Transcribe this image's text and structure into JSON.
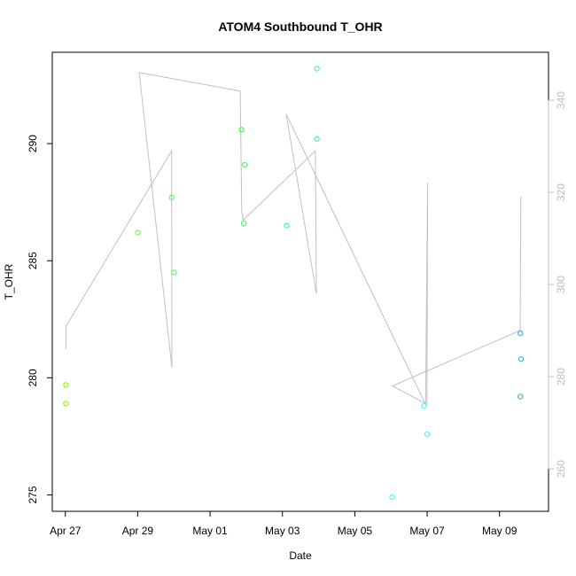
{
  "chart_data": {
    "type": "scatter",
    "title": "ATOM4 Southbound T_OHR",
    "xlabel": "Date",
    "ylabel": "T_OHR",
    "x_tick_labels": [
      "Apr 27",
      "Apr 29",
      "May 01",
      "May 03",
      "May 05",
      "May 07",
      "May 09"
    ],
    "x_ticks": [
      "2016-04-27",
      "2016-04-29",
      "2016-05-01",
      "2016-05-03",
      "2016-05-05",
      "2016-05-07",
      "2016-05-09"
    ],
    "xlim": [
      "2016-04-26T15:20",
      "2016-05-10T08:30"
    ],
    "ylim": [
      274.3,
      293.9
    ],
    "y_ticks": [
      275,
      280,
      285,
      290
    ],
    "y2lim": [
      250.8,
      350.4
    ],
    "y2_ticks": [
      260,
      280,
      300,
      320,
      340
    ],
    "grid": false,
    "points": [
      {
        "x": "2016-04-27T00:20",
        "y": 279.7,
        "color": "#7cfc00"
      },
      {
        "x": "2016-04-27T00:20",
        "y": 278.9,
        "color": "#7cfc00"
      },
      {
        "x": "2016-04-29T00:05",
        "y": 286.2,
        "color": "#5cff30"
      },
      {
        "x": "2016-04-29T22:30",
        "y": 287.7,
        "color": "#44ff44"
      },
      {
        "x": "2016-04-30T00:05",
        "y": 284.5,
        "color": "#44ff44"
      },
      {
        "x": "2016-05-01T20:50",
        "y": 290.6,
        "color": "#28ff50"
      },
      {
        "x": "2016-05-01T23:00",
        "y": 289.1,
        "color": "#28ff50"
      },
      {
        "x": "2016-05-01T22:20",
        "y": 286.6,
        "color": "#28ff50"
      },
      {
        "x": "2016-05-03T02:50",
        "y": 286.5,
        "color": "#20ff70"
      },
      {
        "x": "2016-05-03T22:50",
        "y": 293.2,
        "color": "#20ff90"
      },
      {
        "x": "2016-05-03T22:50",
        "y": 290.2,
        "color": "#20ff90"
      },
      {
        "x": "2016-05-06T00:40",
        "y": 274.9,
        "color": "#30ffe0"
      },
      {
        "x": "2016-05-06T21:55",
        "y": 278.8,
        "color": "#30ffff"
      },
      {
        "x": "2016-05-07T00:00",
        "y": 277.6,
        "color": "#30ffff"
      },
      {
        "x": "2016-05-09T13:50",
        "y": 281.9,
        "color": "#1ea8ff"
      },
      {
        "x": "2016-05-09T13:50",
        "y": 279.2,
        "color": "#1ea8ff"
      },
      {
        "x": "2016-05-09T14:20",
        "y": 280.8,
        "color": "#1ea8ff"
      }
    ],
    "line_series": {
      "color": "#c0c0c0",
      "axis": "right",
      "points": [
        {
          "x": "2016-04-27T00:20",
          "y": 286
        },
        {
          "x": "2016-04-27T00:30",
          "y": 291
        },
        {
          "x": "2016-04-29T22:30",
          "y": 329
        },
        {
          "x": "2016-04-29T22:40",
          "y": 282
        },
        {
          "x": "2016-04-29T01:00",
          "y": 346
        },
        {
          "x": "2016-05-01T20:00",
          "y": 342
        },
        {
          "x": "2016-05-01T21:00",
          "y": 316
        },
        {
          "x": "2016-05-01T22:00",
          "y": 314
        },
        {
          "x": "2016-05-03T21:50",
          "y": 329
        },
        {
          "x": "2016-05-03T22:30",
          "y": 298
        },
        {
          "x": "2016-05-03T02:30",
          "y": 337
        },
        {
          "x": "2016-05-06T23:00",
          "y": 274
        },
        {
          "x": "2016-05-07T00:20",
          "y": 322
        },
        {
          "x": "2016-05-06T23:50",
          "y": 274
        },
        {
          "x": "2016-05-06T01:00",
          "y": 278
        },
        {
          "x": "2016-05-09T13:30",
          "y": 290
        },
        {
          "x": "2016-05-09T13:40",
          "y": 290
        },
        {
          "x": "2016-05-09T14:10",
          "y": 319
        }
      ]
    }
  }
}
